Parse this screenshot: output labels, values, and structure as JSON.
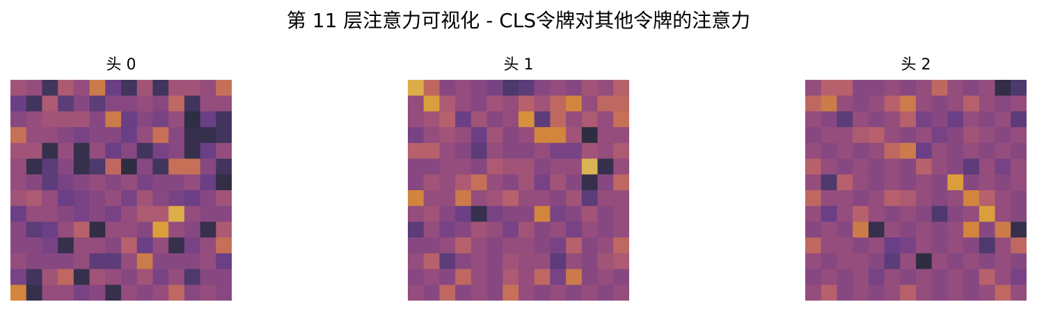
{
  "title": "第 11 层注意力可视化 - CLS令牌对其他令牌的注意力",
  "colormap": [
    "#2b2b3a",
    "#463766",
    "#6a3f86",
    "#8e4a80",
    "#ad5a73",
    "#c36c5e",
    "#d2853c",
    "#dca63c",
    "#d6cc80"
  ],
  "chart_data": [
    {
      "type": "heatmap",
      "title": "头 0",
      "rows": 14,
      "cols": 14,
      "vmin": 0,
      "vmax": 1,
      "values": [
        [
          0.45,
          0.4,
          0.1,
          0.5,
          0.4,
          0.7,
          0.25,
          0.1,
          0.45,
          0.1,
          0.45,
          0.45,
          0.4,
          0.65
        ],
        [
          0.25,
          0.1,
          0.5,
          0.2,
          0.35,
          0.2,
          0.35,
          0.35,
          0.4,
          0.35,
          0.6,
          0.1,
          0.4,
          0.4
        ],
        [
          0.35,
          0.4,
          0.45,
          0.45,
          0.45,
          0.35,
          0.7,
          0.25,
          0.35,
          0.3,
          0.4,
          0.02,
          0.25,
          0.1
        ],
        [
          0.65,
          0.4,
          0.4,
          0.35,
          0.3,
          0.35,
          0.35,
          0.25,
          0.4,
          0.65,
          0.35,
          0.05,
          0.05,
          0.1
        ],
        [
          0.45,
          0.45,
          0.05,
          0.4,
          0.05,
          0.4,
          0.25,
          0.35,
          0.1,
          0.3,
          0.35,
          0.05,
          0.25,
          0.4
        ],
        [
          0.4,
          0.05,
          0.2,
          0.35,
          0.05,
          0.15,
          0.6,
          0.02,
          0.35,
          0.1,
          0.65,
          0.65,
          0.35,
          0.1
        ],
        [
          0.4,
          0.35,
          0.2,
          0.3,
          0.35,
          0.4,
          0.35,
          0.4,
          0.3,
          0.35,
          0.35,
          0.4,
          0.25,
          0.03
        ],
        [
          0.45,
          0.5,
          0.4,
          0.25,
          0.3,
          0.35,
          0.4,
          0.3,
          0.45,
          0.35,
          0.3,
          0.25,
          0.35,
          0.45
        ],
        [
          0.25,
          0.4,
          0.4,
          0.35,
          0.3,
          0.35,
          0.3,
          0.4,
          0.5,
          0.5,
          0.9,
          0.4,
          0.35,
          0.35
        ],
        [
          0.35,
          0.2,
          0.25,
          0.4,
          0.55,
          0.03,
          0.4,
          0.4,
          0.35,
          0.85,
          0.4,
          0.35,
          0.05,
          0.5
        ],
        [
          0.35,
          0.35,
          0.3,
          0.05,
          0.4,
          0.4,
          0.35,
          0.55,
          0.25,
          0.4,
          0.05,
          0.3,
          0.4,
          0.65
        ],
        [
          0.4,
          0.35,
          0.35,
          0.35,
          0.4,
          0.2,
          0.2,
          0.4,
          0.7,
          0.35,
          0.35,
          0.35,
          0.4,
          0.25
        ],
        [
          0.3,
          0.1,
          0.45,
          0.6,
          0.05,
          0.45,
          0.4,
          0.35,
          0.45,
          0.3,
          0.4,
          0.15,
          0.35,
          0.35
        ],
        [
          0.75,
          0.05,
          0.4,
          0.4,
          0.3,
          0.35,
          0.05,
          0.4,
          0.35,
          0.4,
          0.6,
          0.35,
          0.4,
          0.35
        ]
      ]
    },
    {
      "type": "heatmap",
      "title": "头 1",
      "rows": 14,
      "cols": 14,
      "vmin": 0,
      "vmax": 1,
      "values": [
        [
          0.9,
          0.6,
          0.35,
          0.4,
          0.35,
          0.3,
          0.15,
          0.2,
          0.35,
          0.4,
          0.35,
          0.45,
          0.4,
          0.55
        ],
        [
          0.4,
          0.85,
          0.5,
          0.4,
          0.35,
          0.45,
          0.4,
          0.55,
          0.45,
          0.6,
          0.75,
          0.4,
          0.6,
          0.6
        ],
        [
          0.4,
          0.45,
          0.55,
          0.25,
          0.45,
          0.35,
          0.4,
          0.8,
          0.2,
          0.6,
          0.4,
          0.5,
          0.4,
          0.65
        ],
        [
          0.3,
          0.4,
          0.45,
          0.4,
          0.25,
          0.45,
          0.35,
          0.4,
          0.75,
          0.75,
          0.45,
          0.02,
          0.4,
          0.4
        ],
        [
          0.55,
          0.55,
          0.4,
          0.35,
          0.2,
          0.4,
          0.35,
          0.35,
          0.4,
          0.3,
          0.3,
          0.45,
          0.4,
          0.5
        ],
        [
          0.35,
          0.35,
          0.4,
          0.4,
          0.35,
          0.5,
          0.45,
          0.45,
          0.35,
          0.4,
          0.4,
          0.92,
          0.05,
          0.4
        ],
        [
          0.35,
          0.45,
          0.4,
          0.5,
          0.65,
          0.4,
          0.35,
          0.45,
          0.3,
          0.45,
          0.35,
          0.05,
          0.35,
          0.6
        ],
        [
          0.75,
          0.4,
          0.4,
          0.7,
          0.4,
          0.45,
          0.55,
          0.4,
          0.4,
          0.35,
          0.45,
          0.2,
          0.4,
          0.4
        ],
        [
          0.4,
          0.45,
          0.35,
          0.25,
          0.05,
          0.3,
          0.35,
          0.35,
          0.75,
          0.3,
          0.35,
          0.45,
          0.35,
          0.4
        ],
        [
          0.2,
          0.4,
          0.3,
          0.35,
          0.45,
          0.4,
          0.3,
          0.45,
          0.35,
          0.4,
          0.3,
          0.4,
          0.35,
          0.4
        ],
        [
          0.35,
          0.35,
          0.4,
          0.55,
          0.4,
          0.35,
          0.4,
          0.4,
          0.35,
          0.3,
          0.55,
          0.35,
          0.4,
          0.6
        ],
        [
          0.4,
          0.55,
          0.2,
          0.35,
          0.4,
          0.35,
          0.45,
          0.4,
          0.4,
          0.2,
          0.4,
          0.35,
          0.45,
          0.5
        ],
        [
          0.35,
          0.4,
          0.35,
          0.6,
          0.4,
          0.35,
          0.5,
          0.4,
          0.6,
          0.3,
          0.7,
          0.35,
          0.4,
          0.35
        ],
        [
          0.4,
          0.35,
          0.6,
          0.35,
          0.4,
          0.35,
          0.65,
          0.4,
          0.35,
          0.4,
          0.35,
          0.4,
          0.35,
          0.4
        ]
      ]
    },
    {
      "type": "heatmap",
      "title": "头 2",
      "rows": 14,
      "cols": 14,
      "vmin": 0,
      "vmax": 1,
      "values": [
        [
          0.4,
          0.55,
          0.55,
          0.35,
          0.35,
          0.4,
          0.35,
          0.4,
          0.6,
          0.4,
          0.35,
          0.4,
          0.03,
          0.15
        ],
        [
          0.6,
          0.7,
          0.4,
          0.35,
          0.4,
          0.55,
          0.7,
          0.4,
          0.35,
          0.4,
          0.55,
          0.4,
          0.35,
          0.4
        ],
        [
          0.4,
          0.35,
          0.2,
          0.4,
          0.35,
          0.4,
          0.55,
          0.3,
          0.35,
          0.25,
          0.4,
          0.35,
          0.4,
          0.2
        ],
        [
          0.35,
          0.4,
          0.4,
          0.5,
          0.55,
          0.4,
          0.35,
          0.4,
          0.3,
          0.35,
          0.45,
          0.4,
          0.35,
          0.4
        ],
        [
          0.4,
          0.35,
          0.4,
          0.35,
          0.4,
          0.6,
          0.7,
          0.25,
          0.4,
          0.35,
          0.4,
          0.35,
          0.4,
          0.35
        ],
        [
          0.55,
          0.4,
          0.35,
          0.4,
          0.35,
          0.4,
          0.35,
          0.55,
          0.4,
          0.35,
          0.2,
          0.4,
          0.3,
          0.4
        ],
        [
          0.4,
          0.15,
          0.55,
          0.4,
          0.35,
          0.4,
          0.35,
          0.4,
          0.35,
          0.85,
          0.35,
          0.4,
          0.35,
          0.4
        ],
        [
          0.6,
          0.4,
          0.4,
          0.35,
          0.4,
          0.55,
          0.5,
          0.4,
          0.35,
          0.4,
          0.75,
          0.55,
          0.4,
          0.35
        ],
        [
          0.4,
          0.25,
          0.4,
          0.55,
          0.4,
          0.35,
          0.4,
          0.35,
          0.15,
          0.35,
          0.4,
          0.85,
          0.4,
          0.35
        ],
        [
          0.35,
          0.4,
          0.35,
          0.7,
          0.05,
          0.4,
          0.35,
          0.4,
          0.35,
          0.4,
          0.75,
          0.35,
          0.7,
          0.05
        ],
        [
          0.6,
          0.4,
          0.4,
          0.35,
          0.4,
          0.25,
          0.3,
          0.4,
          0.35,
          0.4,
          0.35,
          0.15,
          0.4,
          0.6
        ],
        [
          0.4,
          0.35,
          0.4,
          0.4,
          0.35,
          0.2,
          0.4,
          0.02,
          0.4,
          0.35,
          0.4,
          0.35,
          0.4,
          0.35
        ],
        [
          0.35,
          0.4,
          0.35,
          0.4,
          0.3,
          0.4,
          0.35,
          0.4,
          0.35,
          0.4,
          0.35,
          0.55,
          0.4,
          0.3
        ],
        [
          0.4,
          0.55,
          0.35,
          0.4,
          0.35,
          0.4,
          0.55,
          0.4,
          0.35,
          0.4,
          0.35,
          0.4,
          0.6,
          0.4
        ]
      ]
    }
  ]
}
